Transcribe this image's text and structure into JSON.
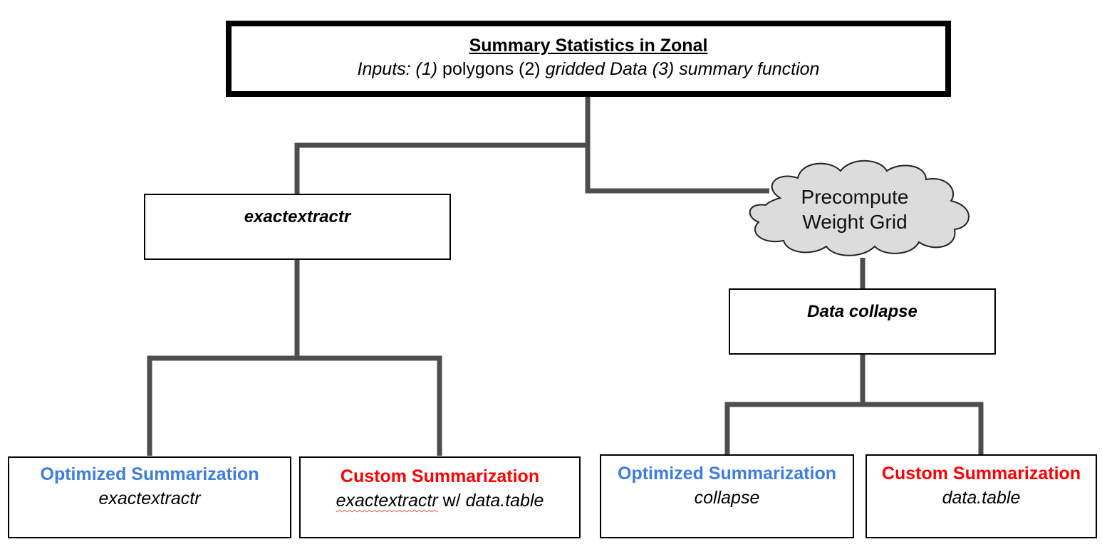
{
  "root": {
    "title": "Summary Statistics in Zonal",
    "inputs": {
      "p1": "Inputs: (1)",
      "p2": " polygons (2) ",
      "p3": "gridded Data (3) summary function"
    }
  },
  "left_branch": {
    "label": "exactextractr",
    "optimized": {
      "title": "Optimized Summarization",
      "desc": "exactextractr"
    },
    "custom": {
      "title": "Custom Summarization",
      "desc_a": "exactextractr",
      "desc_b": " w/ ",
      "desc_c": "data.table"
    }
  },
  "right_branch": {
    "cloud": {
      "line1": "Precompute",
      "line2": "Weight Grid"
    },
    "label": "Data collapse",
    "optimized": {
      "title": "Optimized Summarization",
      "desc": "collapse"
    },
    "custom": {
      "title": "Custom Summarization",
      "desc": "data.table"
    }
  },
  "colors": {
    "optimized": "#3c7de0",
    "custom": "#ff0000",
    "connector": "#4d4d4d",
    "cloud_fill": "#dcdcdc"
  }
}
